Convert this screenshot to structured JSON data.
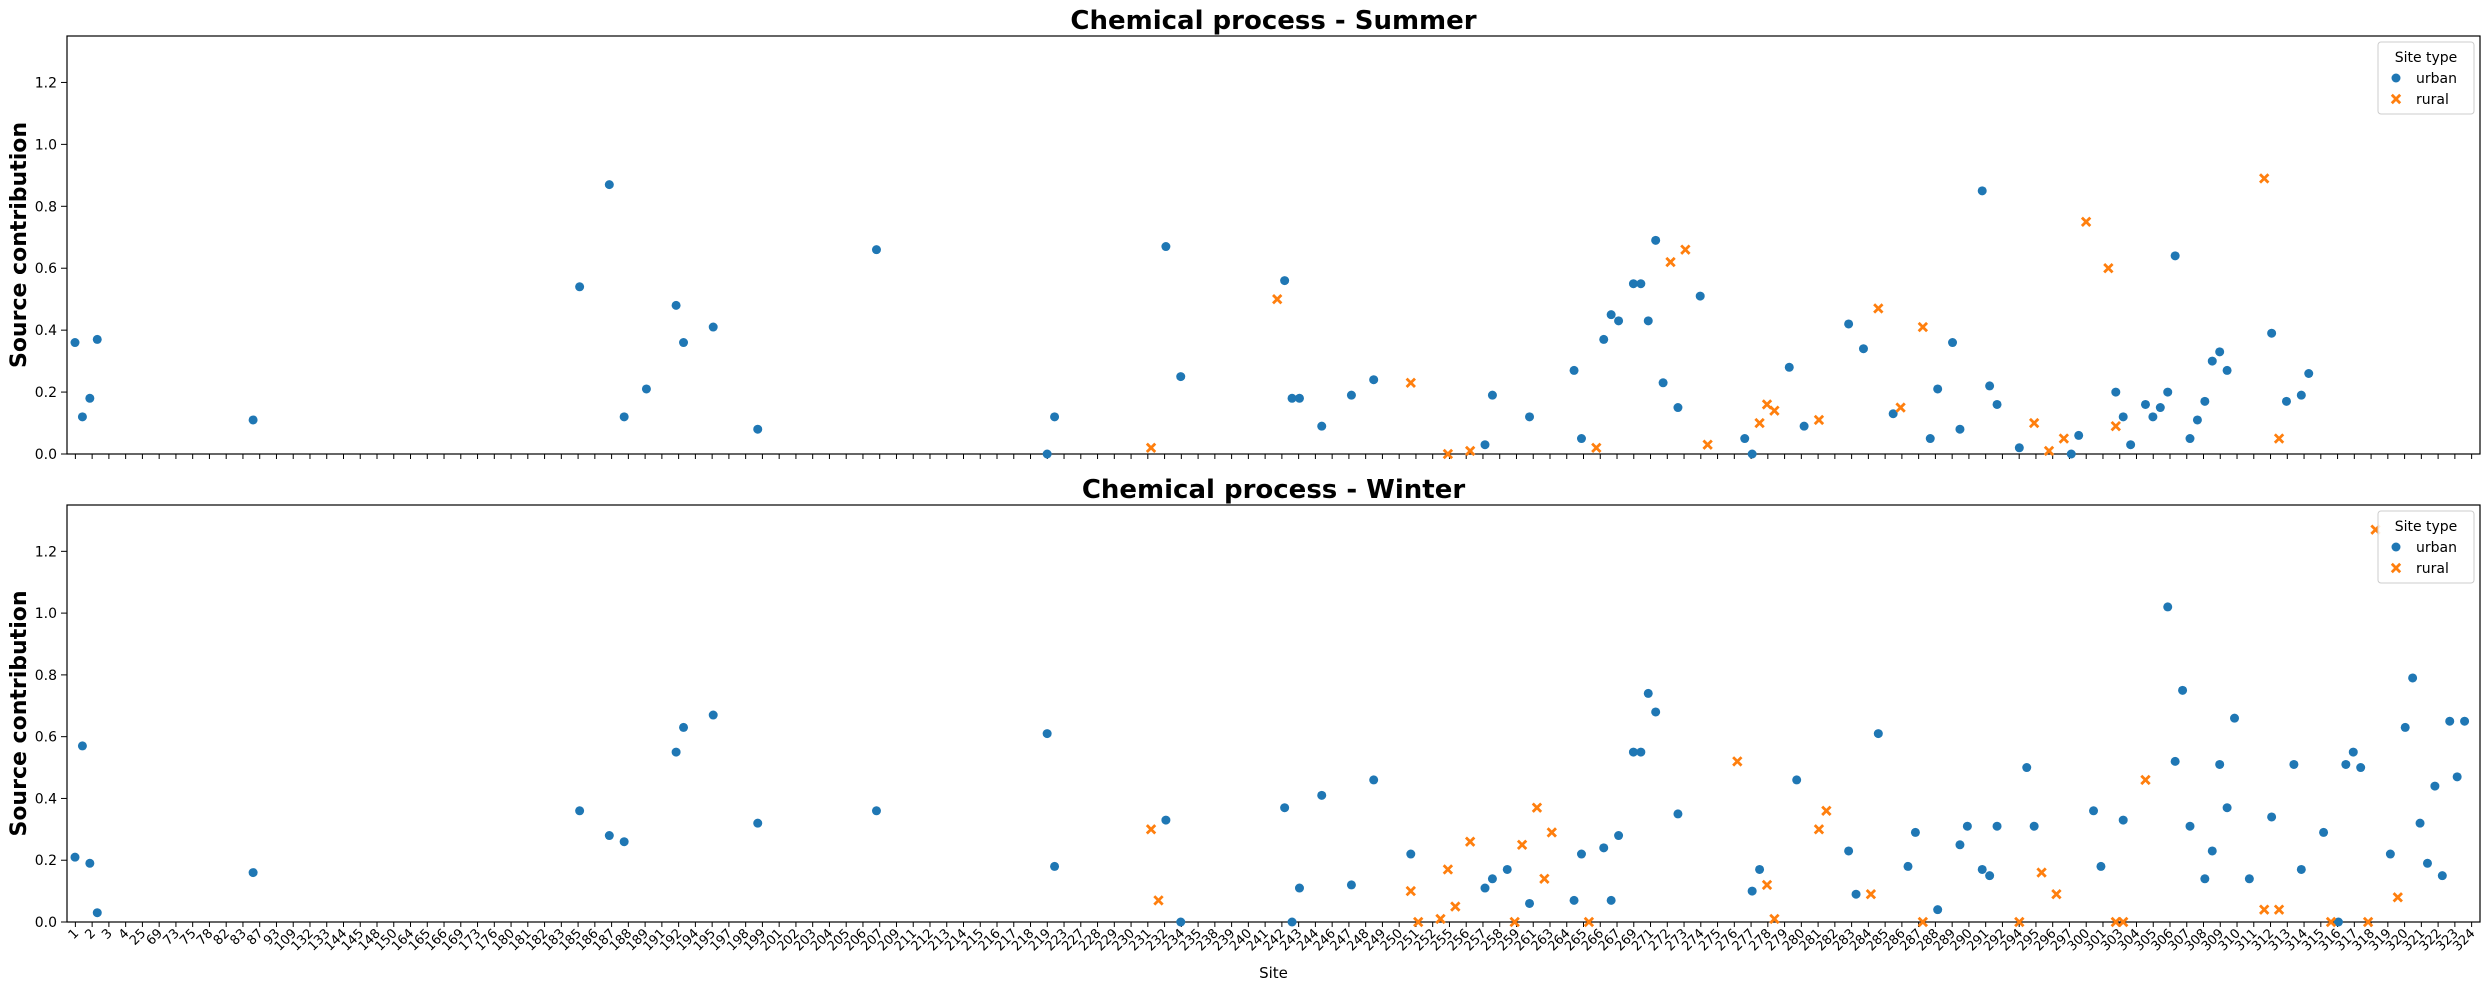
{
  "colors": {
    "urban": "#1f77b4",
    "rural": "#ff7f0e",
    "axis": "#000000",
    "legend_border": "#cccccc"
  },
  "chart_data": [
    {
      "type": "scatter",
      "title": "Chemical process - Summer",
      "ylabel": "Source contribution",
      "xlabel": "",
      "ylim": [
        0,
        1.35
      ],
      "yticks": [
        "0.0",
        "0.2",
        "0.4",
        "0.6",
        "0.8",
        "1.0",
        "1.2"
      ],
      "grid": false,
      "legend": {
        "title": "Site type",
        "position": "top-right",
        "entries": [
          "urban",
          "rural"
        ]
      },
      "series": [
        {
          "name": "urban",
          "marker": "circle",
          "points": [
            [
              1,
              0.36
            ],
            [
              2,
              0.12
            ],
            [
              3,
              0.18
            ],
            [
              4,
              0.37
            ],
            [
              25,
              0.11
            ],
            [
              69,
              0.54
            ],
            [
              73,
              0.87
            ],
            [
              75,
              0.12
            ],
            [
              78,
              0.21
            ],
            [
              82,
              0.48
            ],
            [
              83,
              0.36
            ],
            [
              87,
              0.41
            ],
            [
              93,
              0.08
            ],
            [
              109,
              0.66
            ],
            [
              132,
              0.0
            ],
            [
              133,
              0.12
            ],
            [
              148,
              0.67
            ],
            [
              150,
              0.25
            ],
            [
              164,
              0.56
            ],
            [
              165,
              0.18
            ],
            [
              166,
              0.18
            ],
            [
              169,
              0.09
            ],
            [
              173,
              0.19
            ],
            [
              176,
              0.24
            ],
            [
              191,
              0.03
            ],
            [
              192,
              0.19
            ],
            [
              197,
              0.12
            ],
            [
              203,
              0.27
            ],
            [
              204,
              0.05
            ],
            [
              207,
              0.37
            ],
            [
              208,
              0.45
            ],
            [
              209,
              0.43
            ],
            [
              211,
              0.55
            ],
            [
              212,
              0.55
            ],
            [
              213,
              0.43
            ],
            [
              214,
              0.69
            ],
            [
              215,
              0.23
            ],
            [
              217,
              0.15
            ],
            [
              220,
              0.51
            ],
            [
              226,
              0.05
            ],
            [
              227,
              0.0
            ],
            [
              232,
              0.28
            ],
            [
              234,
              0.09
            ],
            [
              240,
              0.42
            ],
            [
              242,
              0.34
            ],
            [
              246,
              0.13
            ],
            [
              251,
              0.05
            ],
            [
              252,
              0.21
            ],
            [
              254,
              0.36
            ],
            [
              255,
              0.08
            ],
            [
              258,
              0.85
            ],
            [
              259,
              0.22
            ],
            [
              260,
              0.16
            ],
            [
              263,
              0.02
            ],
            [
              270,
              0.0
            ],
            [
              271,
              0.06
            ],
            [
              276,
              0.2
            ],
            [
              277,
              0.12
            ],
            [
              278,
              0.03
            ],
            [
              280,
              0.16
            ],
            [
              281,
              0.12
            ],
            [
              282,
              0.15
            ],
            [
              283,
              0.2
            ],
            [
              284,
              0.64
            ],
            [
              286,
              0.05
            ],
            [
              287,
              0.11
            ],
            [
              288,
              0.17
            ],
            [
              289,
              0.3
            ],
            [
              290,
              0.33
            ],
            [
              291,
              0.27
            ],
            [
              297,
              0.39
            ],
            [
              299,
              0.17
            ],
            [
              301,
              0.19
            ],
            [
              302,
              0.26
            ]
          ]
        },
        {
          "name": "rural",
          "marker": "x",
          "points": [
            [
              146,
              0.02
            ],
            [
              163,
              0.5
            ],
            [
              181,
              0.23
            ],
            [
              186,
              0.0
            ],
            [
              189,
              0.01
            ],
            [
              206,
              0.02
            ],
            [
              216,
              0.62
            ],
            [
              218,
              0.66
            ],
            [
              221,
              0.03
            ],
            [
              228,
              0.1
            ],
            [
              229,
              0.16
            ],
            [
              230,
              0.14
            ],
            [
              236,
              0.11
            ],
            [
              244,
              0.47
            ],
            [
              247,
              0.15
            ],
            [
              250,
              0.41
            ],
            [
              265,
              0.1
            ],
            [
              267,
              0.01
            ],
            [
              269,
              0.05
            ],
            [
              272,
              0.75
            ],
            [
              275,
              0.6
            ],
            [
              276,
              0.09
            ],
            [
              296,
              0.89
            ],
            [
              298,
              0.05
            ]
          ]
        }
      ]
    },
    {
      "type": "scatter",
      "title": "Chemical process - Winter",
      "ylabel": "Source contribution",
      "xlabel": "Site",
      "ylim": [
        0,
        1.35
      ],
      "yticks": [
        "0.0",
        "0.2",
        "0.4",
        "0.6",
        "0.8",
        "1.0",
        "1.2"
      ],
      "grid": false,
      "legend": {
        "title": "Site type",
        "position": "top-right",
        "entries": [
          "urban",
          "rural"
        ]
      },
      "series": [
        {
          "name": "urban",
          "marker": "circle",
          "points": [
            [
              1,
              0.21
            ],
            [
              2,
              0.57
            ],
            [
              3,
              0.19
            ],
            [
              4,
              0.03
            ],
            [
              25,
              0.16
            ],
            [
              69,
              0.36
            ],
            [
              73,
              0.28
            ],
            [
              75,
              0.26
            ],
            [
              82,
              0.55
            ],
            [
              83,
              0.63
            ],
            [
              87,
              0.67
            ],
            [
              93,
              0.32
            ],
            [
              109,
              0.36
            ],
            [
              132,
              0.61
            ],
            [
              133,
              0.18
            ],
            [
              148,
              0.33
            ],
            [
              150,
              0.0
            ],
            [
              164,
              0.37
            ],
            [
              165,
              0.0
            ],
            [
              166,
              0.11
            ],
            [
              169,
              0.41
            ],
            [
              173,
              0.12
            ],
            [
              176,
              0.46
            ],
            [
              181,
              0.22
            ],
            [
              191,
              0.11
            ],
            [
              192,
              0.14
            ],
            [
              194,
              0.17
            ],
            [
              197,
              0.06
            ],
            [
              203,
              0.07
            ],
            [
              204,
              0.22
            ],
            [
              207,
              0.24
            ],
            [
              208,
              0.07
            ],
            [
              209,
              0.28
            ],
            [
              211,
              0.55
            ],
            [
              212,
              0.55
            ],
            [
              213,
              0.74
            ],
            [
              214,
              0.68
            ],
            [
              217,
              0.35
            ],
            [
              227,
              0.1
            ],
            [
              228,
              0.17
            ],
            [
              233,
              0.46
            ],
            [
              240,
              0.23
            ],
            [
              241,
              0.09
            ],
            [
              244,
              0.61
            ],
            [
              248,
              0.18
            ],
            [
              249,
              0.29
            ],
            [
              252,
              0.04
            ],
            [
              255,
              0.25
            ],
            [
              256,
              0.31
            ],
            [
              258,
              0.17
            ],
            [
              259,
              0.15
            ],
            [
              260,
              0.31
            ],
            [
              264,
              0.5
            ],
            [
              265,
              0.31
            ],
            [
              273,
              0.36
            ],
            [
              274,
              0.18
            ],
            [
              277,
              0.33
            ],
            [
              283,
              1.02
            ],
            [
              284,
              0.52
            ],
            [
              285,
              0.75
            ],
            [
              286,
              0.31
            ],
            [
              288,
              0.14
            ],
            [
              289,
              0.23
            ],
            [
              290,
              0.51
            ],
            [
              291,
              0.37
            ],
            [
              292,
              0.66
            ],
            [
              294,
              0.14
            ],
            [
              297,
              0.34
            ],
            [
              300,
              0.51
            ],
            [
              301,
              0.17
            ],
            [
              304,
              0.29
            ],
            [
              306,
              0.0
            ],
            [
              307,
              0.51
            ],
            [
              308,
              0.55
            ],
            [
              309,
              0.5
            ],
            [
              313,
              0.22
            ],
            [
              315,
              0.63
            ],
            [
              316,
              0.79
            ],
            [
              317,
              0.32
            ],
            [
              318,
              0.19
            ],
            [
              319,
              0.44
            ],
            [
              320,
              0.15
            ],
            [
              321,
              0.65
            ],
            [
              322,
              0.47
            ],
            [
              323,
              0.65
            ]
          ]
        },
        {
          "name": "rural",
          "marker": "x",
          "points": [
            [
              146,
              0.3
            ],
            [
              147,
              0.07
            ],
            [
              181,
              0.1
            ],
            [
              182,
              0.0
            ],
            [
              185,
              0.01
            ],
            [
              186,
              0.17
            ],
            [
              187,
              0.05
            ],
            [
              189,
              0.26
            ],
            [
              195,
              0.0
            ],
            [
              196,
              0.25
            ],
            [
              198,
              0.37
            ],
            [
              199,
              0.14
            ],
            [
              200,
              0.29
            ],
            [
              205,
              0.0
            ],
            [
              225,
              0.52
            ],
            [
              229,
              0.12
            ],
            [
              230,
              0.01
            ],
            [
              236,
              0.3
            ],
            [
              237,
              0.36
            ],
            [
              243,
              0.09
            ],
            [
              250,
              0.0
            ],
            [
              263,
              0.0
            ],
            [
              266,
              0.16
            ],
            [
              268,
              0.09
            ],
            [
              276,
              0.0
            ],
            [
              277,
              0.0
            ],
            [
              280,
              0.46
            ],
            [
              296,
              0.04
            ],
            [
              298,
              0.04
            ],
            [
              305,
              0.0
            ],
            [
              310,
              0.0
            ],
            [
              311,
              1.27
            ],
            [
              314,
              0.08
            ]
          ]
        }
      ]
    }
  ],
  "shared_x": {
    "categories": [
      "1",
      "2",
      "3",
      "4",
      "25",
      "69",
      "73",
      "75",
      "78",
      "82",
      "83",
      "87",
      "93",
      "109",
      "132",
      "133",
      "144",
      "145",
      "148",
      "150",
      "164",
      "165",
      "166",
      "169",
      "173",
      "176",
      "180",
      "181",
      "182",
      "183",
      "185",
      "186",
      "187",
      "188",
      "189",
      "191",
      "192",
      "194",
      "195",
      "197",
      "198",
      "199",
      "201",
      "202",
      "203",
      "204",
      "205",
      "206",
      "207",
      "209",
      "211",
      "212",
      "213",
      "214",
      "215",
      "216",
      "217",
      "218",
      "219",
      "223",
      "227",
      "228",
      "229",
      "230",
      "231",
      "232",
      "234",
      "235",
      "238",
      "239",
      "240",
      "241",
      "242",
      "243",
      "244",
      "246",
      "247",
      "248",
      "249",
      "250",
      "251",
      "252",
      "255",
      "256",
      "257",
      "258",
      "259",
      "261",
      "263",
      "264",
      "265",
      "266",
      "267",
      "269",
      "271",
      "272",
      "273",
      "274",
      "275",
      "276",
      "277",
      "278",
      "279",
      "280",
      "281",
      "282",
      "283",
      "284",
      "285",
      "286",
      "287",
      "288",
      "289",
      "290",
      "291",
      "292",
      "294",
      "295",
      "296",
      "297",
      "300",
      "301",
      "303",
      "304",
      "305",
      "306",
      "307",
      "308",
      "309",
      "310",
      "311",
      "312",
      "313",
      "314",
      "315",
      "316",
      "317",
      "318",
      "319",
      "320",
      "321",
      "322",
      "323",
      "324"
    ],
    "label": "Site"
  }
}
